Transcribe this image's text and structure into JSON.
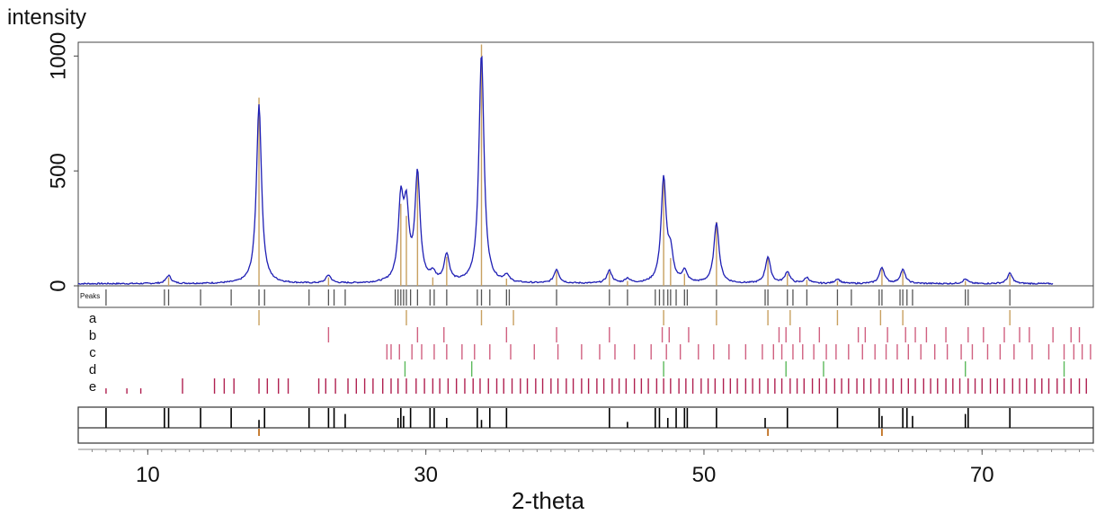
{
  "chart_data": {
    "type": "line",
    "ylabel": "intensity",
    "xlabel": "2-theta",
    "xlim": [
      5,
      78
    ],
    "ylim": [
      0,
      1060
    ],
    "x_ticks": [
      10,
      30,
      50,
      70
    ],
    "y_ticks": [
      0,
      500,
      1000
    ],
    "grid": false,
    "colors": {
      "pattern": "#1f1fb4",
      "reference": "#c8a060",
      "peaks": "#555555",
      "a": "#c8a060",
      "b": "#d06080",
      "c": "#d06080",
      "d": "#5cba5c",
      "e": "#b02050",
      "diff": "#000000",
      "diff_marker": "#c07020"
    },
    "series": [
      {
        "values_note": "",
        "x": [
          11.5,
          18.0,
          23.0,
          28.2,
          28.6,
          29.4,
          30.5,
          31.5,
          34.0,
          35.8,
          39.4,
          43.2,
          44.5,
          47.1,
          47.6,
          48.6,
          50.9,
          54.6,
          56.0,
          57.4,
          59.6,
          62.8,
          64.3,
          68.8,
          72.0
        ],
        "heights": [
          35,
          780,
          35,
          340,
          290,
          465,
          35,
          120,
          1000,
          30,
          60,
          55,
          20,
          450,
          115,
          50,
          265,
          115,
          50,
          25,
          20,
          70,
          60,
          20,
          45
        ]
      }
    ],
    "peaks_label": "Peaks",
    "peaks": [
      7.0,
      11.2,
      11.5,
      13.8,
      16.0,
      18.0,
      18.4,
      21.6,
      23.0,
      23.4,
      24.2,
      27.8,
      28.0,
      28.2,
      28.4,
      28.6,
      28.9,
      29.4,
      30.3,
      30.6,
      31.5,
      33.7,
      34.0,
      34.6,
      35.8,
      36.0,
      39.4,
      43.2,
      44.5,
      46.5,
      46.8,
      47.1,
      47.4,
      47.6,
      48.0,
      48.6,
      48.8,
      50.9,
      54.4,
      54.6,
      56.0,
      56.4,
      57.4,
      59.6,
      60.6,
      62.6,
      62.8,
      64.1,
      64.3,
      64.6,
      65.0,
      68.8,
      69.0,
      72.0
    ],
    "phases": [
      {
        "label": "a",
        "x": [
          18.0,
          28.6,
          34.0,
          36.3,
          47.1,
          50.9,
          54.6,
          56.2,
          59.6,
          62.7,
          64.3,
          72.0
        ]
      },
      {
        "label": "b",
        "x": [
          23.0,
          29.4,
          31.3,
          35.8,
          39.4,
          43.2,
          47.0,
          47.5,
          48.9,
          55.4,
          55.9,
          56.9,
          58.3,
          61.1,
          61.6,
          63.2,
          64.5,
          65.2,
          66.0,
          67.4,
          69.0,
          70.1,
          71.6,
          72.7,
          73.4,
          75.1,
          76.4,
          77.0
        ]
      },
      {
        "label": "c",
        "x": [
          27.2,
          27.5,
          28.1,
          29.0,
          29.7,
          30.6,
          31.5,
          32.6,
          33.5,
          34.6,
          36.1,
          37.8,
          39.5,
          41.2,
          42.5,
          43.6,
          45.0,
          46.2,
          47.3,
          48.3,
          49.6,
          50.7,
          51.8,
          53.0,
          54.2,
          55.0,
          55.6,
          56.4,
          57.1,
          57.9,
          58.8,
          59.5,
          60.4,
          61.4,
          62.3,
          63.1,
          63.9,
          64.7,
          65.6,
          66.6,
          67.5,
          68.5,
          69.3,
          70.4,
          71.3,
          72.3,
          73.6,
          74.8,
          75.9,
          76.6,
          77.2,
          77.8
        ]
      },
      {
        "label": "d",
        "x": [
          28.5,
          33.3,
          47.1,
          55.9,
          58.6,
          68.8,
          75.9
        ]
      },
      {
        "label": "e",
        "x": [
          7.0,
          8.5,
          9.5,
          12.5,
          14.8,
          15.5,
          16.2,
          18.0,
          18.6,
          19.4,
          20.1,
          22.3,
          22.8,
          23.5,
          24.4,
          25.0,
          25.6,
          26.2,
          26.9,
          27.5,
          28.0,
          28.6,
          29.3,
          29.9,
          30.5,
          31.0,
          31.6,
          32.2,
          32.8,
          33.4,
          33.9,
          34.5,
          35.1,
          35.6,
          36.2,
          36.8,
          37.3,
          37.9,
          38.4,
          39.0,
          39.5,
          40.1,
          40.6,
          41.2,
          41.7,
          42.3,
          42.8,
          43.4,
          43.9,
          44.4,
          45.0,
          45.5,
          46.0,
          46.6,
          47.1,
          47.6,
          48.2,
          48.7,
          49.2,
          49.8,
          50.3,
          50.8,
          51.4,
          51.9,
          52.4,
          53.0,
          53.5,
          54.0,
          54.6,
          55.1,
          55.6,
          56.2,
          56.7,
          57.2,
          57.8,
          58.3,
          58.8,
          59.4,
          59.9,
          60.4,
          61.0,
          61.5,
          62.0,
          62.6,
          63.1,
          63.6,
          64.2,
          64.7,
          65.2,
          65.8,
          66.3,
          66.8,
          67.4,
          67.9,
          68.4,
          69.0,
          69.5,
          70.0,
          70.6,
          71.1,
          71.6,
          72.2,
          72.7,
          73.2,
          73.8,
          74.3,
          74.8,
          75.4,
          75.9,
          76.4,
          77.0,
          77.5
        ]
      }
    ],
    "diff_sticks": [
      {
        "x": 7.0,
        "h": 1.0
      },
      {
        "x": 11.2,
        "h": 1.0
      },
      {
        "x": 11.5,
        "h": 1.0
      },
      {
        "x": 13.8,
        "h": 1.0
      },
      {
        "x": 16.0,
        "h": 1.0
      },
      {
        "x": 18.0,
        "h": 0.4
      },
      {
        "x": 18.4,
        "h": 1.0
      },
      {
        "x": 21.6,
        "h": 1.0
      },
      {
        "x": 23.0,
        "h": 1.0
      },
      {
        "x": 23.4,
        "h": 1.0
      },
      {
        "x": 24.2,
        "h": 0.7
      },
      {
        "x": 28.0,
        "h": 0.5
      },
      {
        "x": 28.2,
        "h": 1.0
      },
      {
        "x": 28.4,
        "h": 0.6
      },
      {
        "x": 28.9,
        "h": 1.0
      },
      {
        "x": 30.3,
        "h": 1.0
      },
      {
        "x": 30.6,
        "h": 1.0
      },
      {
        "x": 31.5,
        "h": 0.5
      },
      {
        "x": 33.7,
        "h": 1.0
      },
      {
        "x": 34.0,
        "h": 0.4
      },
      {
        "x": 34.6,
        "h": 1.0
      },
      {
        "x": 35.8,
        "h": 1.0
      },
      {
        "x": 43.2,
        "h": 1.0
      },
      {
        "x": 44.5,
        "h": 0.3
      },
      {
        "x": 46.5,
        "h": 1.0
      },
      {
        "x": 46.8,
        "h": 1.0
      },
      {
        "x": 47.4,
        "h": 0.5
      },
      {
        "x": 48.0,
        "h": 1.0
      },
      {
        "x": 48.6,
        "h": 1.0
      },
      {
        "x": 48.8,
        "h": 1.0
      },
      {
        "x": 50.9,
        "h": 1.0
      },
      {
        "x": 54.4,
        "h": 0.5
      },
      {
        "x": 56.0,
        "h": 1.0
      },
      {
        "x": 59.6,
        "h": 1.0
      },
      {
        "x": 62.6,
        "h": 1.0
      },
      {
        "x": 62.8,
        "h": 0.6
      },
      {
        "x": 64.3,
        "h": 1.0
      },
      {
        "x": 64.6,
        "h": 1.0
      },
      {
        "x": 65.0,
        "h": 0.6
      },
      {
        "x": 68.8,
        "h": 0.7
      },
      {
        "x": 69.0,
        "h": 1.0
      },
      {
        "x": 72.0,
        "h": 1.0
      }
    ],
    "diff_markers": [
      18.0,
      54.6,
      62.8
    ]
  }
}
